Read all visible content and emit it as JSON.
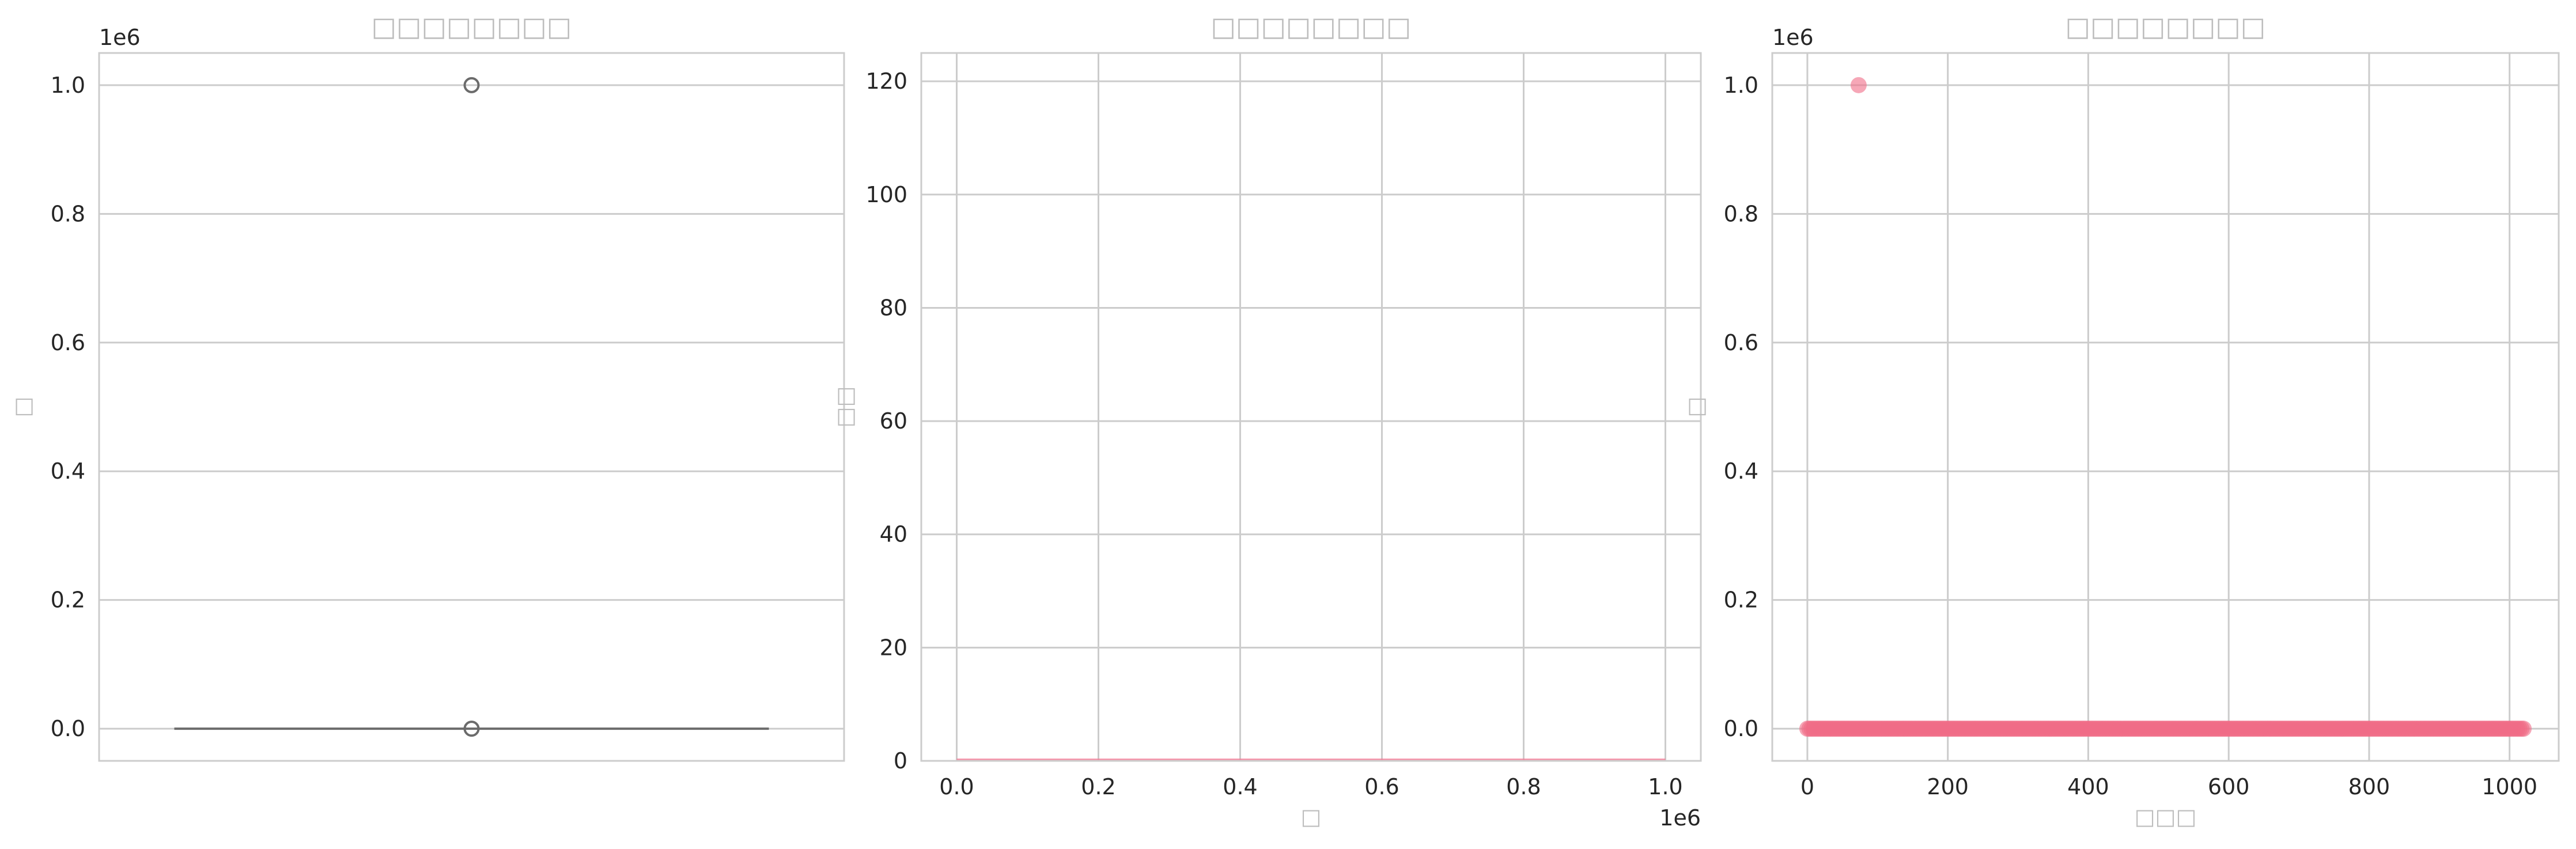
{
  "chart_data": [
    {
      "type": "box",
      "title": "□□□□□□□□",
      "xlabel": "",
      "ylabel": "□",
      "offset_text": "1e6",
      "ylim": [
        -50000,
        1050000
      ],
      "yticks": [
        0.0,
        0.2,
        0.4,
        0.6,
        0.8,
        1.0
      ],
      "ytick_labels": [
        "0.0",
        "0.2",
        "0.4",
        "0.6",
        "0.8",
        "1.0"
      ],
      "grid": true,
      "box": {
        "median": 0,
        "q1": 0,
        "q3": 0,
        "whisker_low": 0,
        "whisker_high": 0
      },
      "outliers": [
        1000000,
        0
      ],
      "color": "#6b6b6b"
    },
    {
      "type": "histogram",
      "title": "□□□□□□□□",
      "xlabel": "□",
      "ylabel": "□□",
      "offset_text": "1e6",
      "xlim": [
        -50000,
        1050000
      ],
      "ylim": [
        0,
        125
      ],
      "xticks": [
        0.0,
        0.2,
        0.4,
        0.6,
        0.8,
        1.0
      ],
      "xtick_labels": [
        "0.0",
        "0.2",
        "0.4",
        "0.6",
        "0.8",
        "1.0"
      ],
      "yticks": [
        0,
        20,
        40,
        60,
        80,
        100,
        120
      ],
      "ytick_labels": [
        "0",
        "20",
        "40",
        "60",
        "80",
        "100",
        "120"
      ],
      "grid": true,
      "bins": {
        "x": [
          0,
          1000000
        ],
        "counts": [
          0.2,
          0.2
        ]
      },
      "color": "#f37b95"
    },
    {
      "type": "scatter",
      "title": "□□□□□□□□",
      "xlabel": "□□□",
      "ylabel": "□",
      "offset_text": "1e6",
      "xlim": [
        -50,
        1070
      ],
      "ylim": [
        -50000,
        1050000
      ],
      "xticks": [
        0,
        200,
        400,
        600,
        800,
        1000
      ],
      "xtick_labels": [
        "0",
        "200",
        "400",
        "600",
        "800",
        "1000"
      ],
      "yticks": [
        0.0,
        0.2,
        0.4,
        0.6,
        0.8,
        1.0
      ],
      "ytick_labels": [
        "0.0",
        "0.2",
        "0.4",
        "0.6",
        "0.8",
        "1.0"
      ],
      "grid": true,
      "points": {
        "x_range": [
          0,
          1020
        ],
        "y_value": 0,
        "outlier": {
          "x": 73,
          "y": 1000000
        }
      },
      "color": "#f06c87"
    }
  ]
}
